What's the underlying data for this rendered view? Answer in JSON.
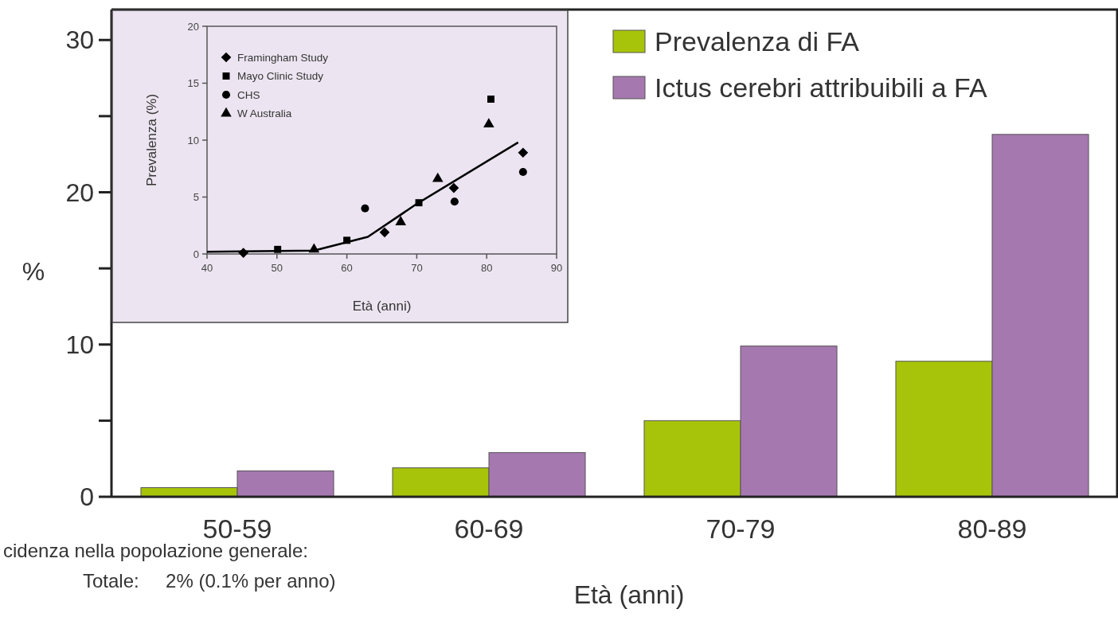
{
  "chart_data": [
    {
      "type": "bar",
      "categories": [
        "50-59",
        "60-69",
        "70-79",
        "80-89"
      ],
      "xlabel": "Età (anni)",
      "ylabel": "%",
      "series": [
        {
          "name": "Prevalenza di FA",
          "color": "#a8c40a",
          "values": [
            0.6,
            1.9,
            5.0,
            8.9
          ]
        },
        {
          "name": "Ictus cerebri attribuibili a FA",
          "color": "#a678b0",
          "values": [
            1.7,
            2.9,
            9.9,
            23.8
          ]
        }
      ],
      "ylim": [
        0,
        32
      ],
      "yticks": [
        0,
        {
          "value": 5,
          "label": null
        },
        10,
        {
          "value": 15,
          "label": null
        },
        20,
        {
          "value": 25,
          "label": null
        },
        30
      ],
      "legend": "top right",
      "grid": false,
      "annotations": [
        "cidenza nella popolazione generale:",
        "Totale:     2% (0.1% per anno)"
      ]
    },
    {
      "type": "scatter",
      "xlabel": "Età (anni)",
      "ylabel": "Prevalenza (%)",
      "xlim": [
        40,
        90
      ],
      "ylim": [
        0,
        20
      ],
      "xticks": [
        40,
        50,
        60,
        70,
        80,
        90
      ],
      "yticks": [
        0,
        5,
        10,
        15,
        20
      ],
      "legend": "top left",
      "grid": false,
      "series": [
        {
          "name": "Framingham Study",
          "color": "#000000",
          "marker": "diamond",
          "x": [
            45.2,
            65.4,
            75.3,
            85.2
          ],
          "values": [
            0.1,
            1.9,
            5.8,
            8.9
          ]
        },
        {
          "name": "Mayo Clinic Study",
          "color": "#000000",
          "marker": "square",
          "x": [
            50.1,
            60.0,
            70.3,
            80.6
          ],
          "values": [
            0.4,
            1.2,
            4.5,
            13.6
          ]
        },
        {
          "name": "CHS",
          "color": "#000000",
          "marker": "circle",
          "x": [
            62.6,
            75.4,
            85.2
          ],
          "values": [
            4.0,
            4.6,
            7.2
          ]
        },
        {
          "name": "W Australia",
          "color": "#000000",
          "marker": "triangle",
          "x": [
            55.3,
            67.7,
            73.0,
            80.3
          ],
          "values": [
            0.4,
            2.8,
            6.6,
            11.4
          ]
        },
        {
          "type": "line",
          "color": "#000000",
          "x": [
            40,
            55.3,
            63,
            70,
            84.5
          ],
          "values": [
            0.2,
            0.3,
            1.5,
            4.4,
            9.8
          ]
        }
      ]
    }
  ]
}
